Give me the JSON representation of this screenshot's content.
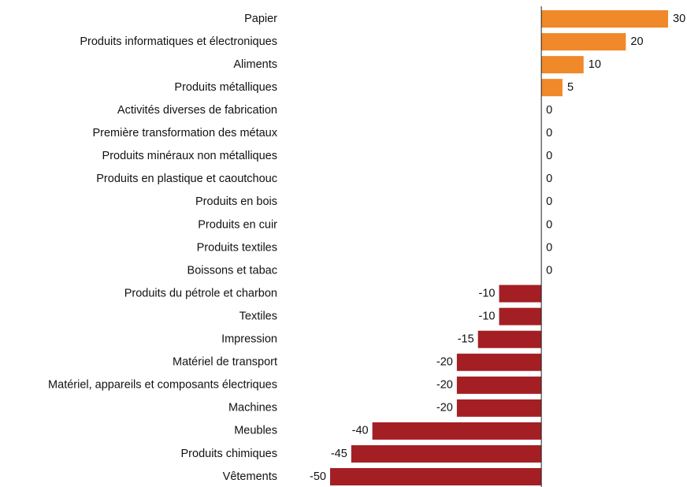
{
  "chart_data": {
    "type": "bar",
    "orientation": "horizontal",
    "categories": [
      "Papier",
      "Produits informatiques et électroniques",
      "Aliments",
      "Produits métalliques",
      "Activités diverses de fabrication",
      "Première transformation des métaux",
      "Produits minéraux non métalliques",
      "Produits en plastique et caoutchouc",
      "Produits en bois",
      "Produits en cuir",
      "Produits textiles",
      "Boissons et tabac",
      "Produits du pétrole et charbon",
      "Textiles",
      "Impression",
      "Matériel de transport",
      "Matériel, appareils et composants électriques",
      "Machines",
      "Meubles",
      "Produits chimiques",
      "Vêtements"
    ],
    "values": [
      30,
      20,
      10,
      5,
      0,
      0,
      0,
      0,
      0,
      0,
      0,
      0,
      -10,
      -10,
      -15,
      -20,
      -20,
      -20,
      -40,
      -45,
      -50
    ],
    "positive_color": "#f0892a",
    "negative_color": "#a31f24"
  }
}
